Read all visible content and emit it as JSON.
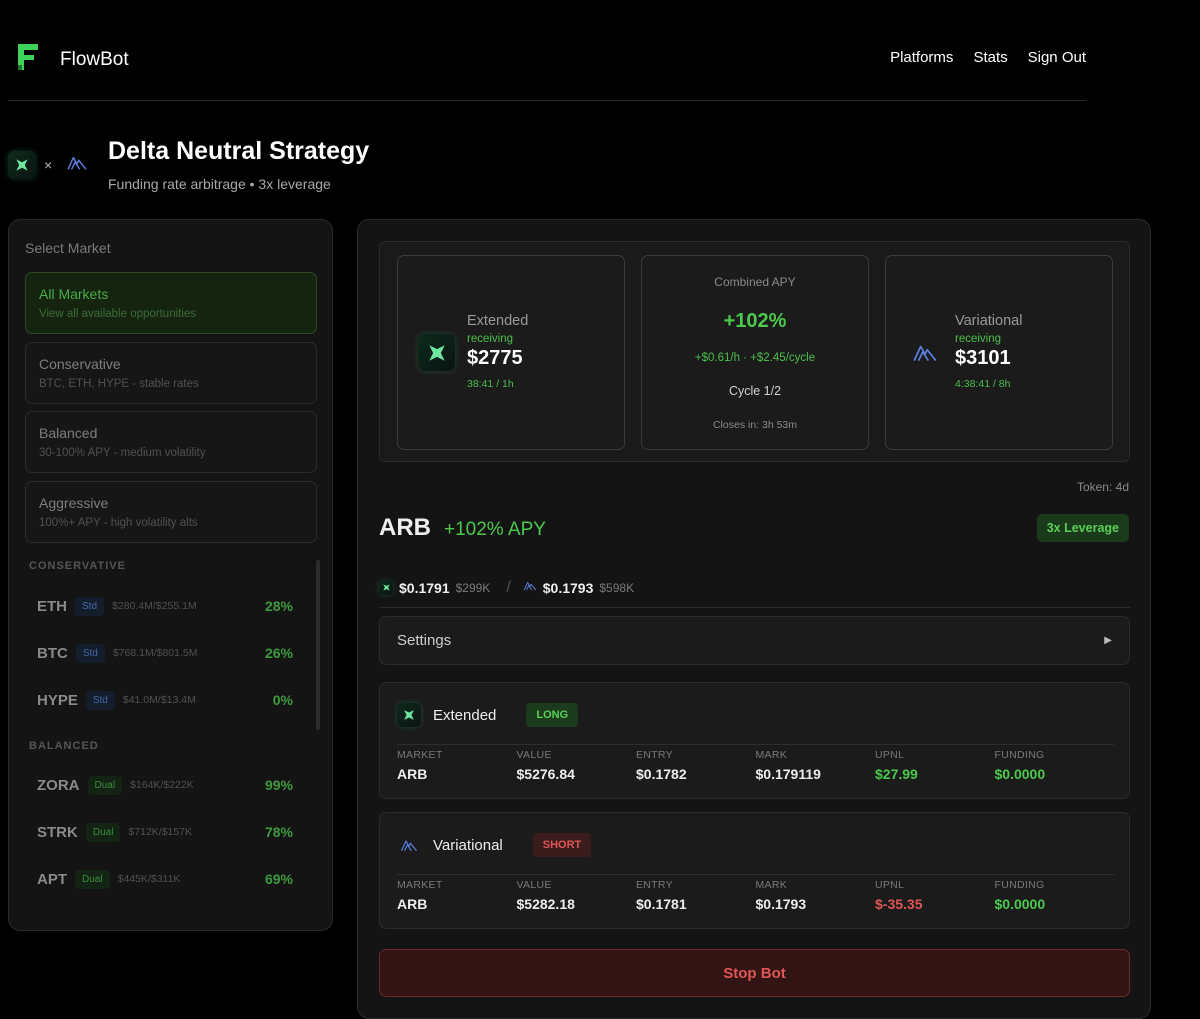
{
  "header": {
    "brand": "FlowBot",
    "nav": [
      "Platforms",
      "Stats",
      "Sign Out"
    ]
  },
  "page": {
    "title": "Delta Neutral Strategy",
    "subtitle": "Funding rate arbitrage • 3x leverage",
    "times": "×"
  },
  "sidebar": {
    "title": "Select Market",
    "categories": [
      {
        "name": "All Markets",
        "desc": "View all available opportunities",
        "active": true
      },
      {
        "name": "Conservative",
        "desc": "BTC, ETH, HYPE - stable rates"
      },
      {
        "name": "Balanced",
        "desc": "30-100% APY - medium volatility"
      },
      {
        "name": "Aggressive",
        "desc": "100%+ APY - high volatility alts"
      }
    ],
    "sections": [
      {
        "label": "CONSERVATIVE",
        "markets": [
          {
            "symbol": "ETH",
            "badge": "Std",
            "volume": "$280.4M/$255.1M",
            "apy": "28%"
          },
          {
            "symbol": "BTC",
            "badge": "Std",
            "volume": "$768.1M/$801.5M",
            "apy": "26%"
          },
          {
            "symbol": "HYPE",
            "badge": "Std",
            "volume": "$41.0M/$13.4M",
            "apy": "0%"
          }
        ]
      },
      {
        "label": "BALANCED",
        "markets": [
          {
            "symbol": "ZORA",
            "badge": "Dual",
            "volume": "$164K/$222K",
            "apy": "99%"
          },
          {
            "symbol": "STRK",
            "badge": "Dual",
            "volume": "$712K/$157K",
            "apy": "78%"
          },
          {
            "symbol": "APT",
            "badge": "Dual",
            "volume": "$445K/$311K",
            "apy": "69%"
          }
        ]
      }
    ]
  },
  "summary": {
    "extended": {
      "name": "Extended",
      "status": "receiving",
      "amount": "$2775",
      "time": "38:41 / 1h"
    },
    "combined": {
      "label": "Combined APY",
      "apy": "+102%",
      "rate": "+$0.61/h · +$2.45/cycle",
      "cycle": "Cycle 1/2",
      "closes": "Closes in: 3h 53m"
    },
    "variational": {
      "name": "Variational",
      "status": "receiving",
      "amount": "$3101",
      "time": "4:38:41 / 8h"
    }
  },
  "token": "Token: 4d",
  "market": {
    "symbol": "ARB",
    "apy": "+102% APY",
    "leverage": "3x Leverage",
    "ext_price": "$0.1791",
    "ext_vol": "$299K",
    "separator": "/",
    "var_price": "$0.1793",
    "var_vol": "$598K"
  },
  "settings": {
    "label": "Settings",
    "arrow": "▶"
  },
  "column_headers": [
    "MARKET",
    "VALUE",
    "ENTRY",
    "MARK",
    "UPNL",
    "FUNDING"
  ],
  "positions": [
    {
      "platform": "Extended",
      "side": "LONG",
      "market": "ARB",
      "value": "$5276.84",
      "entry": "$0.1782",
      "mark": "$0.179119",
      "upnl": "$27.99",
      "funding": "$0.0000"
    },
    {
      "platform": "Variational",
      "side": "SHORT",
      "market": "ARB",
      "value": "$5282.18",
      "entry": "$0.1781",
      "mark": "$0.1793",
      "upnl": "$-35.35",
      "funding": "$0.0000"
    }
  ],
  "actions": {
    "stop": "Stop Bot"
  },
  "colors": {
    "accent_green": "#4cc94c",
    "danger_red": "#e05555",
    "variational_blue": "#5b7fe0",
    "brand_green": "#3fd25a"
  },
  "icons": {
    "brand": "flowbot-logo-icon",
    "extended": "extended-logo-icon",
    "variational": "variational-logo-icon",
    "settings_arrow": "triangle-right-icon"
  }
}
